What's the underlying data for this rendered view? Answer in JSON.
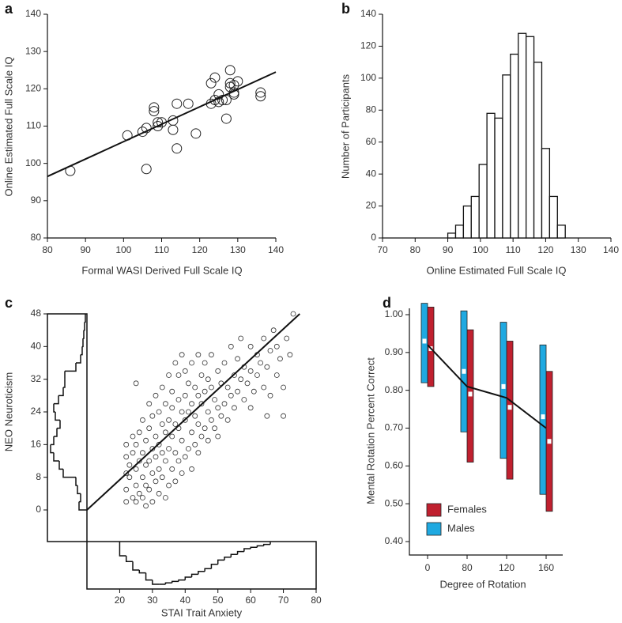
{
  "chart_data": [
    {
      "type": "scatter",
      "label": "a",
      "xlabel": "Formal WASI Derived Full Scale IQ",
      "ylabel": "Online Estimated Full Scale IQ",
      "xlim": [
        80,
        140
      ],
      "xticks": [
        80,
        90,
        100,
        110,
        120,
        130,
        140
      ],
      "ylim": [
        80,
        140
      ],
      "yticks": [
        80,
        90,
        100,
        110,
        120,
        130,
        140
      ],
      "x": [
        86,
        101,
        105,
        106,
        106,
        108,
        108,
        109,
        109,
        110,
        113,
        113,
        114,
        114,
        117,
        119,
        123,
        123,
        124,
        124,
        125,
        125,
        126,
        127,
        127,
        128,
        128,
        128,
        129,
        129,
        129,
        130,
        136,
        136
      ],
      "y": [
        98,
        107.5,
        108.5,
        109.5,
        98.5,
        115,
        114,
        110,
        111,
        111,
        111.5,
        109,
        116,
        104,
        116,
        108,
        121.5,
        116,
        123,
        117,
        118.5,
        116.5,
        117,
        117,
        112,
        125,
        121.5,
        120.5,
        119,
        118.5,
        121,
        122,
        119,
        118
      ],
      "fit": {
        "x": [
          80,
          140
        ],
        "y": [
          96.5,
          124.5
        ]
      }
    },
    {
      "type": "histogram",
      "label": "b",
      "xlabel": "Online Estimated Full Scale IQ",
      "ylabel": "Number of Participants",
      "xlim": [
        70,
        140
      ],
      "xticks": [
        70,
        80,
        90,
        100,
        110,
        120,
        130,
        140
      ],
      "ylim": [
        0,
        140
      ],
      "yticks": [
        0,
        20,
        40,
        60,
        80,
        100,
        120,
        140
      ],
      "bins": [
        90,
        92.4,
        94.8,
        97.2,
        99.6,
        102,
        104.4,
        106.8,
        109.2,
        111.6,
        114,
        116.4,
        118.8,
        121.2,
        123.6,
        126
      ],
      "counts": [
        3,
        8,
        20,
        26,
        46,
        78,
        75,
        102,
        115,
        128,
        126,
        110,
        56,
        26,
        8
      ]
    },
    {
      "type": "scatter",
      "label": "c",
      "xlabel": "STAI Trait Anxiety",
      "ylabel": "NEO Neuroticism",
      "xlim": [
        10,
        80
      ],
      "xticks": [
        20,
        30,
        40,
        50,
        60,
        70,
        80
      ],
      "ylim": [
        0,
        48
      ],
      "yticks": [
        0,
        8,
        16,
        24,
        32,
        40,
        48
      ],
      "points": [
        [
          22,
          2
        ],
        [
          22,
          5
        ],
        [
          22,
          9
        ],
        [
          22,
          13
        ],
        [
          22,
          16
        ],
        [
          23,
          8
        ],
        [
          23,
          11
        ],
        [
          24,
          3
        ],
        [
          24,
          14
        ],
        [
          24,
          18
        ],
        [
          25,
          2
        ],
        [
          25,
          6
        ],
        [
          25,
          10
        ],
        [
          25,
          16
        ],
        [
          25,
          31
        ],
        [
          26,
          4
        ],
        [
          26,
          12
        ],
        [
          26,
          19
        ],
        [
          27,
          3
        ],
        [
          27,
          8
        ],
        [
          27,
          14
        ],
        [
          27,
          22
        ],
        [
          28,
          1
        ],
        [
          28,
          6
        ],
        [
          28,
          11
        ],
        [
          28,
          17
        ],
        [
          29,
          5
        ],
        [
          29,
          12
        ],
        [
          29,
          20
        ],
        [
          29,
          26
        ],
        [
          30,
          2
        ],
        [
          30,
          9
        ],
        [
          30,
          15
        ],
        [
          30,
          23
        ],
        [
          31,
          7
        ],
        [
          31,
          13
        ],
        [
          31,
          18
        ],
        [
          31,
          28
        ],
        [
          32,
          4
        ],
        [
          32,
          10
        ],
        [
          32,
          16
        ],
        [
          32,
          24
        ],
        [
          33,
          8
        ],
        [
          33,
          14
        ],
        [
          33,
          21
        ],
        [
          33,
          30
        ],
        [
          34,
          3
        ],
        [
          34,
          12
        ],
        [
          34,
          19
        ],
        [
          34,
          26
        ],
        [
          35,
          6
        ],
        [
          35,
          15
        ],
        [
          35,
          22
        ],
        [
          35,
          33
        ],
        [
          36,
          10
        ],
        [
          36,
          18
        ],
        [
          36,
          25
        ],
        [
          36,
          29
        ],
        [
          37,
          7
        ],
        [
          37,
          14
        ],
        [
          37,
          21
        ],
        [
          37,
          36
        ],
        [
          38,
          12
        ],
        [
          38,
          20
        ],
        [
          38,
          27
        ],
        [
          38,
          33
        ],
        [
          39,
          9
        ],
        [
          39,
          17
        ],
        [
          39,
          24
        ],
        [
          39,
          38
        ],
        [
          40,
          13
        ],
        [
          40,
          22
        ],
        [
          40,
          28
        ],
        [
          40,
          34
        ],
        [
          41,
          15
        ],
        [
          41,
          24
        ],
        [
          41,
          31
        ],
        [
          42,
          10
        ],
        [
          42,
          19
        ],
        [
          42,
          26
        ],
        [
          42,
          36
        ],
        [
          43,
          16
        ],
        [
          43,
          23
        ],
        [
          43,
          30
        ],
        [
          44,
          14
        ],
        [
          44,
          21
        ],
        [
          44,
          28
        ],
        [
          44,
          38
        ],
        [
          45,
          18
        ],
        [
          45,
          26
        ],
        [
          45,
          33
        ],
        [
          46,
          20
        ],
        [
          46,
          29
        ],
        [
          46,
          36
        ],
        [
          47,
          17
        ],
        [
          47,
          24
        ],
        [
          47,
          32
        ],
        [
          48,
          22
        ],
        [
          48,
          30
        ],
        [
          48,
          38
        ],
        [
          49,
          20
        ],
        [
          49,
          27
        ],
        [
          50,
          18
        ],
        [
          50,
          25
        ],
        [
          50,
          34
        ],
        [
          51,
          23
        ],
        [
          51,
          31
        ],
        [
          52,
          26
        ],
        [
          52,
          36
        ],
        [
          53,
          22
        ],
        [
          53,
          30
        ],
        [
          54,
          28
        ],
        [
          54,
          40
        ],
        [
          55,
          25
        ],
        [
          55,
          33
        ],
        [
          56,
          29
        ],
        [
          56,
          37
        ],
        [
          57,
          32
        ],
        [
          57,
          42
        ],
        [
          58,
          27
        ],
        [
          58,
          35
        ],
        [
          59,
          31
        ],
        [
          60,
          34
        ],
        [
          60,
          40
        ],
        [
          61,
          29
        ],
        [
          62,
          33
        ],
        [
          62,
          38
        ],
        [
          63,
          36
        ],
        [
          64,
          30
        ],
        [
          64,
          42
        ],
        [
          65,
          35
        ],
        [
          66,
          28
        ],
        [
          66,
          39
        ],
        [
          67,
          44
        ],
        [
          68,
          33
        ],
        [
          68,
          40
        ],
        [
          69,
          37
        ],
        [
          70,
          30
        ],
        [
          71,
          42
        ],
        [
          72,
          38
        ],
        [
          73,
          48
        ],
        [
          65,
          23
        ],
        [
          70,
          23
        ],
        [
          60,
          25
        ]
      ],
      "fit": {
        "x": [
          10,
          75
        ],
        "y": [
          0,
          48
        ]
      },
      "y_marginal": {
        "bins": [
          0,
          2,
          4,
          6,
          8,
          10,
          12,
          14,
          16,
          18,
          20,
          22,
          24,
          26,
          28,
          30,
          32,
          34,
          36,
          38,
          40,
          42,
          44,
          46,
          48
        ],
        "counts": [
          10,
          8,
          12,
          14,
          30,
          35,
          42,
          46,
          42,
          38,
          34,
          40,
          42,
          36,
          30,
          28,
          28,
          14,
          8,
          6,
          5,
          4,
          3,
          2
        ]
      },
      "x_marginal": {
        "bins": [
          20,
          22,
          24,
          26,
          28,
          30,
          32,
          34,
          36,
          38,
          40,
          42,
          44,
          46,
          48,
          50,
          52,
          54,
          56,
          58,
          60,
          62,
          64,
          66
        ],
        "counts": [
          10,
          14,
          20,
          22,
          27,
          30,
          30,
          29,
          28,
          27,
          25,
          23,
          21,
          19,
          16,
          13,
          11,
          9,
          7,
          5,
          4,
          3,
          2
        ]
      }
    },
    {
      "type": "bar",
      "label": "d",
      "xlabel": "Degree of Rotation",
      "ylabel": "Mental Rotation Percent Correct",
      "categories": [
        "0",
        "80",
        "120",
        "160"
      ],
      "ylim": [
        0.4,
        1.0
      ],
      "yticks": [
        {
          "value": 0.4,
          "label": "0.40"
        },
        {
          "value": 0.5,
          "label": "0.50"
        },
        {
          "value": 0.6,
          "label": "0.60"
        },
        {
          "value": 0.7,
          "label": "0.70"
        },
        {
          "value": 0.8,
          "label": "0.80"
        },
        {
          "value": 0.9,
          "label": "0.90"
        },
        {
          "value": 1.0,
          "label": "1.00"
        }
      ],
      "series": [
        {
          "name": "Females",
          "color": "#c0202f",
          "low": [
            0.81,
            0.61,
            0.565,
            0.48
          ],
          "high": [
            1.02,
            0.96,
            0.93,
            0.85
          ],
          "median": [
            0.91,
            0.79,
            0.755,
            0.665
          ]
        },
        {
          "name": "Males",
          "color": "#1fa9e1",
          "low": [
            0.82,
            0.69,
            0.62,
            0.525
          ],
          "high": [
            1.03,
            1.01,
            0.98,
            0.92
          ],
          "median": [
            0.93,
            0.85,
            0.81,
            0.73
          ]
        }
      ],
      "line_values": [
        0.92,
        0.81,
        0.78,
        0.7
      ]
    }
  ]
}
